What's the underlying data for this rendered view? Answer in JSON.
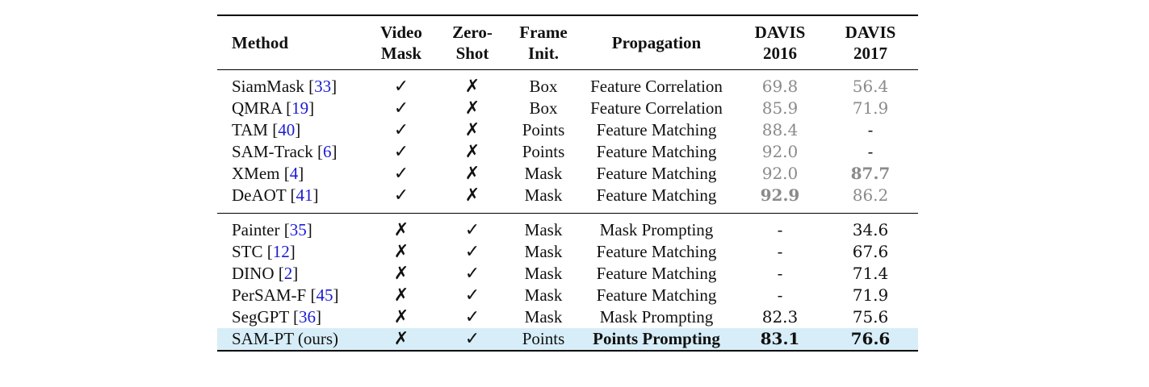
{
  "headers": {
    "method": "Method",
    "video_mask_1": "Video",
    "video_mask_2": "Mask",
    "zero_shot_1": "Zero-",
    "zero_shot_2": "Shot",
    "frame_init_1": "Frame",
    "frame_init_2": "Init.",
    "propagation": "Propagation",
    "davis16_1": "DAVIS",
    "davis16_2": "2016",
    "davis17_1": "DAVIS",
    "davis17_2": "2017"
  },
  "group1": [
    {
      "name": "SiamMask",
      "ref": "33",
      "video_mask": "✓",
      "zero_shot": "✗",
      "frame_init": "Box",
      "propagation": "Feature Correlation",
      "davis2016": "69.8",
      "davis2017": "56.4"
    },
    {
      "name": "QMRA",
      "ref": "19",
      "video_mask": "✓",
      "zero_shot": "✗",
      "frame_init": "Box",
      "propagation": "Feature Correlation",
      "davis2016": "85.9",
      "davis2017": "71.9"
    },
    {
      "name": "TAM",
      "ref": "40",
      "video_mask": "✓",
      "zero_shot": "✗",
      "frame_init": "Points",
      "propagation": "Feature Matching",
      "davis2016": "88.4",
      "davis2017": "-"
    },
    {
      "name": "SAM-Track",
      "ref": "6",
      "video_mask": "✓",
      "zero_shot": "✗",
      "frame_init": "Points",
      "propagation": "Feature Matching",
      "davis2016": "92.0",
      "davis2017": "-"
    },
    {
      "name": "XMem",
      "ref": "4",
      "video_mask": "✓",
      "zero_shot": "✗",
      "frame_init": "Mask",
      "propagation": "Feature Matching",
      "davis2016": "92.0",
      "davis2017": "87.7"
    },
    {
      "name": "DeAOT",
      "ref": "41",
      "video_mask": "✓",
      "zero_shot": "✗",
      "frame_init": "Mask",
      "propagation": "Feature Matching",
      "davis2016": "92.9",
      "davis2017": "86.2"
    }
  ],
  "group2": [
    {
      "name": "Painter",
      "ref": "35",
      "video_mask": "✗",
      "zero_shot": "✓",
      "frame_init": "Mask",
      "propagation": "Mask Prompting",
      "davis2016": "-",
      "davis2017": "34.6"
    },
    {
      "name": "STC",
      "ref": "12",
      "video_mask": "✗",
      "zero_shot": "✓",
      "frame_init": "Mask",
      "propagation": "Feature Matching",
      "davis2016": "-",
      "davis2017": "67.6"
    },
    {
      "name": "DINO",
      "ref": "2",
      "video_mask": "✗",
      "zero_shot": "✓",
      "frame_init": "Mask",
      "propagation": "Feature Matching",
      "davis2016": "-",
      "davis2017": "71.4"
    },
    {
      "name": "PerSAM-F",
      "ref": "45",
      "video_mask": "✗",
      "zero_shot": "✓",
      "frame_init": "Mask",
      "propagation": "Feature Matching",
      "davis2016": "-",
      "davis2017": "71.9"
    },
    {
      "name": "SegGPT",
      "ref": "36",
      "video_mask": "✗",
      "zero_shot": "✓",
      "frame_init": "Mask",
      "propagation": "Mask Prompting",
      "davis2016": "82.3",
      "davis2017": "75.6"
    },
    {
      "name": "SAM-PT (ours)",
      "ref": "",
      "video_mask": "✗",
      "zero_shot": "✓",
      "frame_init": "Points",
      "propagation": "Points Prompting",
      "davis2016": "83.1",
      "davis2017": "76.6"
    }
  ],
  "highlight_color": "#d7eef8",
  "ref_color": "#1a1ad6",
  "muted_color": "#8a8a8a"
}
